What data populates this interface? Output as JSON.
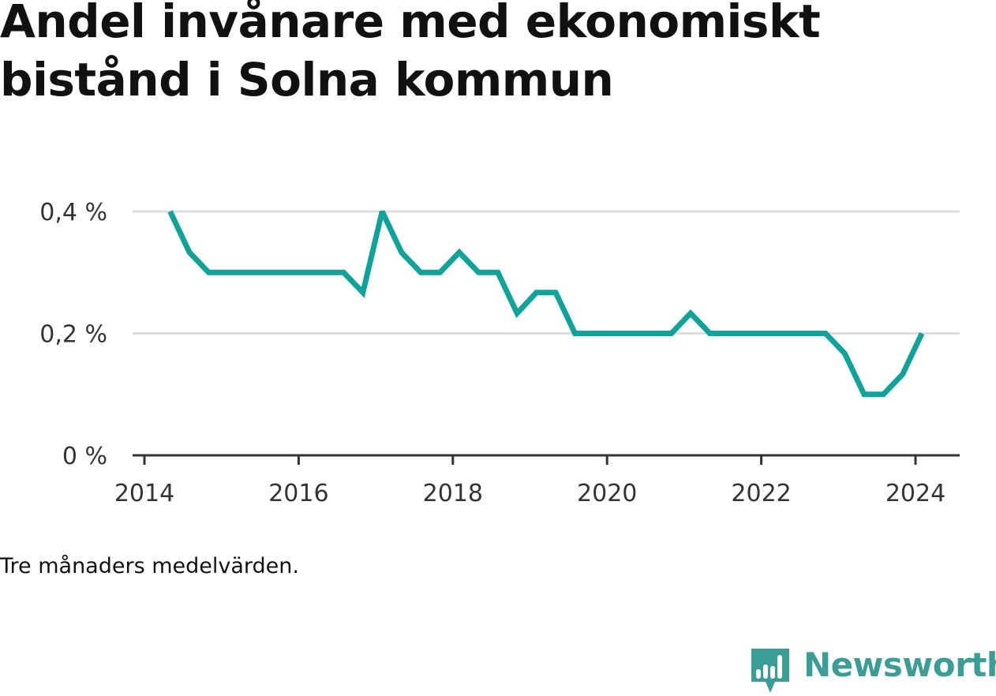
{
  "title": "Andel invånare med ekonomiskt bistånd i Solna kommun",
  "note": "Tre månaders medelvärden.",
  "brand": "Newsworthy",
  "colors": {
    "line": "#0fa39a",
    "grid": "#dddddd",
    "axis": "#333333",
    "brand": "#3a9e96"
  },
  "chart_data": {
    "type": "line",
    "title": "Andel invånare med ekonomiskt bistånd i Solna kommun",
    "xlabel": "",
    "ylabel": "",
    "x_ticks": [
      "2014",
      "2016",
      "2018",
      "2020",
      "2022",
      "2024"
    ],
    "y_ticks": [
      {
        "value": 0,
        "label": "0 %"
      },
      {
        "value": 0.2,
        "label": "0,2 %"
      },
      {
        "value": 0.4,
        "label": "0,4 %"
      }
    ],
    "xlim": [
      "2014-01-01",
      "2024-07-01"
    ],
    "ylim": [
      0,
      0.4
    ],
    "grid": true,
    "series": [
      {
        "x": [
          "2014-05-01",
          "2014-08-01",
          "2014-11-01",
          "2015-02-01",
          "2015-05-01",
          "2015-08-01",
          "2015-11-01",
          "2016-02-01",
          "2016-05-01",
          "2016-08-01",
          "2016-11-01",
          "2017-02-01",
          "2017-05-01",
          "2017-08-01",
          "2017-11-01",
          "2018-02-01",
          "2018-05-01",
          "2018-08-01",
          "2018-11-01",
          "2019-02-01",
          "2019-05-01",
          "2019-08-01",
          "2019-11-01",
          "2020-02-01",
          "2020-05-01",
          "2020-08-01",
          "2020-11-01",
          "2021-02-01",
          "2021-05-01",
          "2021-08-01",
          "2021-11-01",
          "2022-02-01",
          "2022-05-01",
          "2022-08-01",
          "2022-11-01",
          "2023-02-01",
          "2023-05-01",
          "2023-08-01",
          "2023-11-01",
          "2024-02-01"
        ],
        "values": [
          0.4,
          0.333,
          0.3,
          0.3,
          0.3,
          0.3,
          0.3,
          0.3,
          0.3,
          0.3,
          0.267,
          0.4,
          0.333,
          0.3,
          0.3,
          0.333,
          0.3,
          0.3,
          0.233,
          0.267,
          0.267,
          0.2,
          0.2,
          0.2,
          0.2,
          0.2,
          0.2,
          0.233,
          0.2,
          0.2,
          0.2,
          0.2,
          0.2,
          0.2,
          0.2,
          0.167,
          0.1,
          0.1,
          0.133,
          0.2
        ]
      }
    ]
  }
}
